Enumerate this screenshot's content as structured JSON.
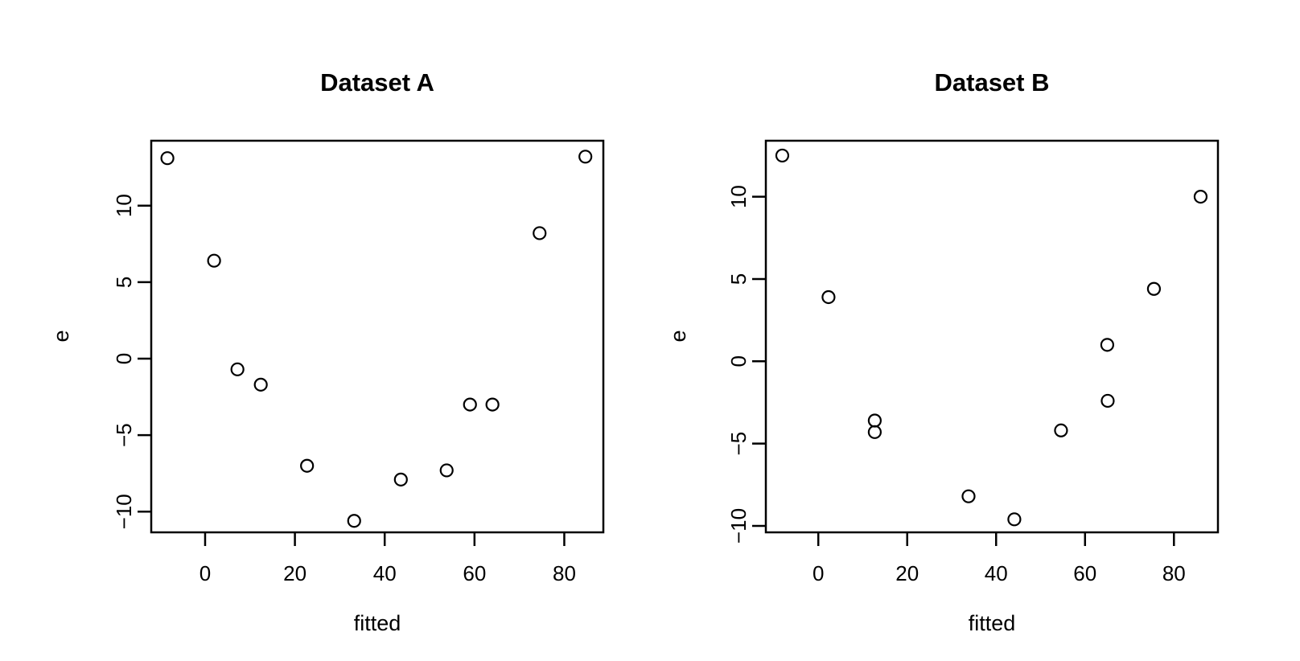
{
  "figure": {
    "background_color": "#ffffff",
    "foreground_color": "#000000",
    "marker": "open-circle",
    "grid": "off",
    "legend": "none"
  },
  "chart_data": [
    {
      "type": "scatter",
      "title": "Dataset A",
      "xlabel": "fitted",
      "ylabel": "e",
      "xlim": [
        -12.0,
        88.7
      ],
      "ylim": [
        -11.35,
        14.24
      ],
      "x_ticks": [
        0,
        20,
        40,
        60,
        80
      ],
      "y_ticks": [
        -10,
        -5,
        0,
        5,
        10
      ],
      "points": [
        {
          "x": -8.4,
          "y": 13.1
        },
        {
          "x": 2.0,
          "y": 6.4
        },
        {
          "x": 7.2,
          "y": -0.7
        },
        {
          "x": 12.4,
          "y": -1.7
        },
        {
          "x": 22.7,
          "y": -7.0
        },
        {
          "x": 33.2,
          "y": -10.6
        },
        {
          "x": 43.6,
          "y": -7.9
        },
        {
          "x": 53.8,
          "y": -7.3
        },
        {
          "x": 59.0,
          "y": -3.0
        },
        {
          "x": 64.0,
          "y": -3.0
        },
        {
          "x": 74.5,
          "y": 8.2
        },
        {
          "x": 84.7,
          "y": 13.2
        }
      ]
    },
    {
      "type": "scatter",
      "title": "Dataset B",
      "xlabel": "fitted",
      "ylabel": "e",
      "xlim": [
        -11.8,
        89.9
      ],
      "ylim": [
        -10.39,
        13.4
      ],
      "x_ticks": [
        0,
        20,
        40,
        60,
        80
      ],
      "y_ticks": [
        -10,
        -5,
        0,
        5,
        10
      ],
      "points": [
        {
          "x": -8.1,
          "y": 12.5
        },
        {
          "x": 2.3,
          "y": 3.9
        },
        {
          "x": 12.7,
          "y": -3.6
        },
        {
          "x": 12.7,
          "y": -4.3
        },
        {
          "x": 33.8,
          "y": -8.2
        },
        {
          "x": 44.1,
          "y": -9.6
        },
        {
          "x": 54.6,
          "y": -4.2
        },
        {
          "x": 65.0,
          "y": 1.0
        },
        {
          "x": 65.1,
          "y": -2.4
        },
        {
          "x": 75.5,
          "y": 4.4
        },
        {
          "x": 86.0,
          "y": 10.0
        }
      ]
    }
  ]
}
